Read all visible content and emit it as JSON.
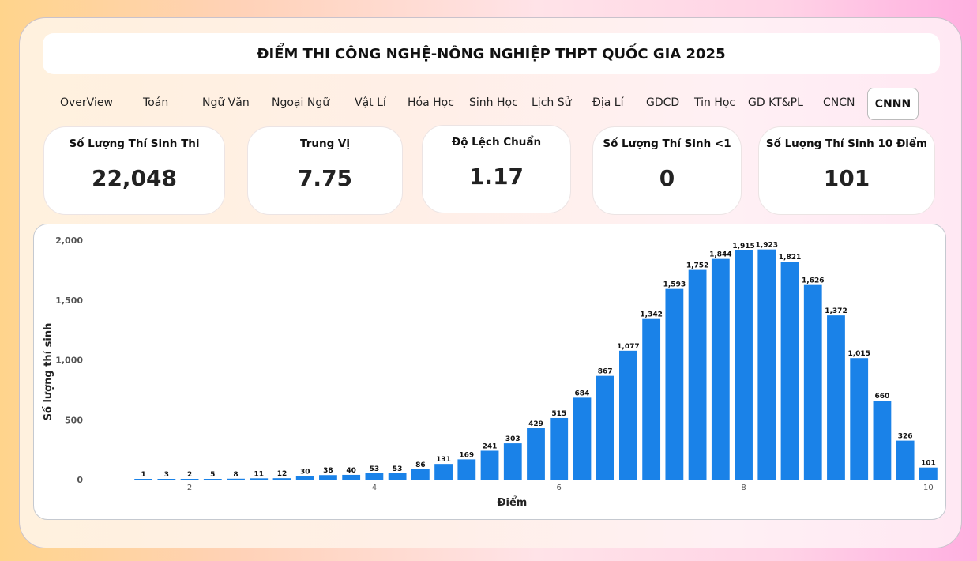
{
  "title": "ĐIỂM THI CÔNG NGHỆ-NÔNG NGHIỆP THPT QUỐC GIA 2025",
  "tabs": [
    "OverView",
    "Toán",
    "Ngữ Văn",
    "Ngoại Ngữ",
    "Vật Lí",
    "Hóa Học",
    "Sinh Học",
    "Lịch Sử",
    "Địa Lí",
    "GDCD",
    "Tin Học",
    "GD KT&PL",
    "CNCN"
  ],
  "active_tab": "CNNN",
  "cards": [
    {
      "label": "Số Lượng Thí Sinh Thi",
      "value": "22,048"
    },
    {
      "label": "Trung Vị",
      "value": "7.75"
    },
    {
      "label": "Độ Lệch Chuẩn",
      "value": "1.17"
    },
    {
      "label": "Số Lượng Thí Sinh <1",
      "value": "0"
    },
    {
      "label": "Số Lượng Thí Sinh 10 Điểm",
      "value": "101"
    }
  ],
  "colors": {
    "bar": "#1a82e8"
  },
  "chart_data": {
    "type": "bar",
    "xlabel": "Điểm",
    "ylabel": "Số lượng thí sinh",
    "ylim": [
      0,
      2000
    ],
    "yticks": [
      0,
      500,
      1000,
      1500,
      2000
    ],
    "ytick_labels": [
      "0",
      "500",
      "1,000",
      "1,500",
      "2,000"
    ],
    "xticks": [
      2,
      4,
      6,
      8,
      10
    ],
    "x": [
      1.5,
      1.75,
      2,
      2.25,
      2.5,
      2.75,
      3,
      3.25,
      3.5,
      3.75,
      4,
      4.25,
      4.5,
      4.75,
      5,
      5.25,
      5.5,
      5.75,
      6,
      6.25,
      6.5,
      6.75,
      7,
      7.25,
      7.5,
      7.75,
      8,
      8.25,
      8.5,
      8.75,
      9,
      9.25,
      9.5,
      9.75,
      10
    ],
    "values": [
      1,
      3,
      2,
      5,
      8,
      11,
      12,
      30,
      38,
      40,
      53,
      53,
      86,
      131,
      169,
      241,
      303,
      429,
      515,
      684,
      867,
      1077,
      1342,
      1593,
      1752,
      1844,
      1915,
      1923,
      1821,
      1626,
      1372,
      1015,
      660,
      326,
      101
    ],
    "value_labels": [
      "1",
      "3",
      "2",
      "5",
      "8",
      "11",
      "12",
      "30",
      "38",
      "40",
      "53",
      "53",
      "86",
      "131",
      "169",
      "241",
      "303",
      "429",
      "515",
      "684",
      "867",
      "1,077",
      "1,342",
      "1,593",
      "1,752",
      "1,844",
      "1,915",
      "1,923",
      "1,821",
      "1,626",
      "1,372",
      "1,015",
      "660",
      "326",
      "101"
    ]
  }
}
